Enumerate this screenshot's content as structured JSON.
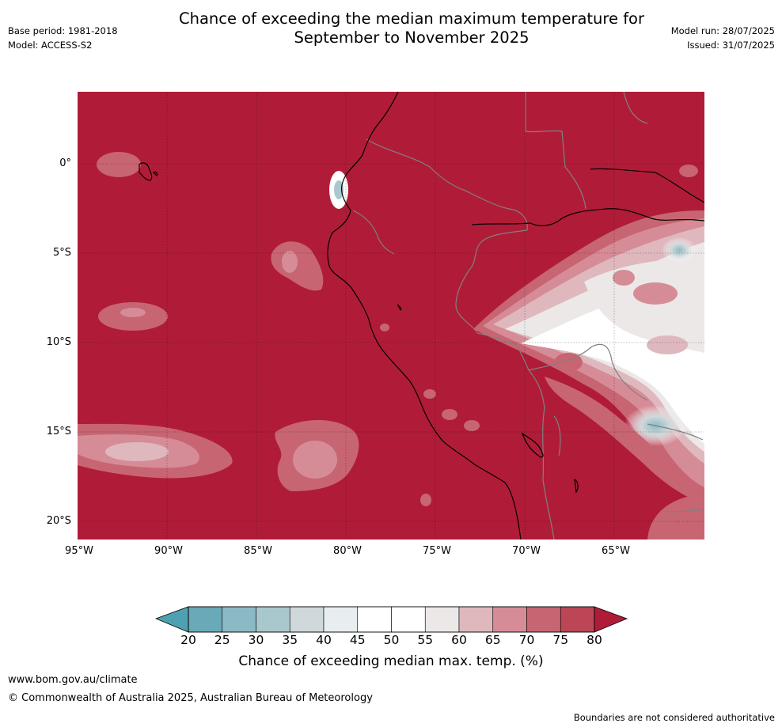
{
  "header": {
    "title_line1": "Chance of exceeding the median maximum temperature for",
    "title_line2": "September to November 2025",
    "base_period": "Base period: 1981-2018",
    "model": "Model: ACCESS-S2",
    "model_run": "Model run: 28/07/2025",
    "issued": "Issued: 31/07/2025"
  },
  "map": {
    "lat_labels": [
      "0°",
      "5°S",
      "10°S",
      "15°S",
      "20°S"
    ],
    "lon_labels": [
      "95°W",
      "90°W",
      "85°W",
      "80°W",
      "75°W",
      "70°W",
      "65°W"
    ]
  },
  "colorbar": {
    "ticks": [
      "20",
      "25",
      "30",
      "35",
      "40",
      "45",
      "50",
      "55",
      "60",
      "65",
      "70",
      "75",
      "80"
    ],
    "label": "Chance of exceeding median max. temp. (%)",
    "colors": [
      "#6aa9b8",
      "#8cbac4",
      "#a9c8cd",
      "#cfd8da",
      "#e8edf0",
      "#ffffff",
      "#ffffff",
      "#ebe8e7",
      "#dfb8be",
      "#d68c96",
      "#c86573",
      "#bc4656"
    ],
    "under_color": "#4ea1b1",
    "over_color": "#b01c38"
  },
  "footer": {
    "website": "www.bom.gov.au/climate",
    "copyright": "© Commonwealth of Australia 2025, Australian Bureau of Meteorology",
    "disclaimer": "Boundaries are not considered authoritative"
  }
}
